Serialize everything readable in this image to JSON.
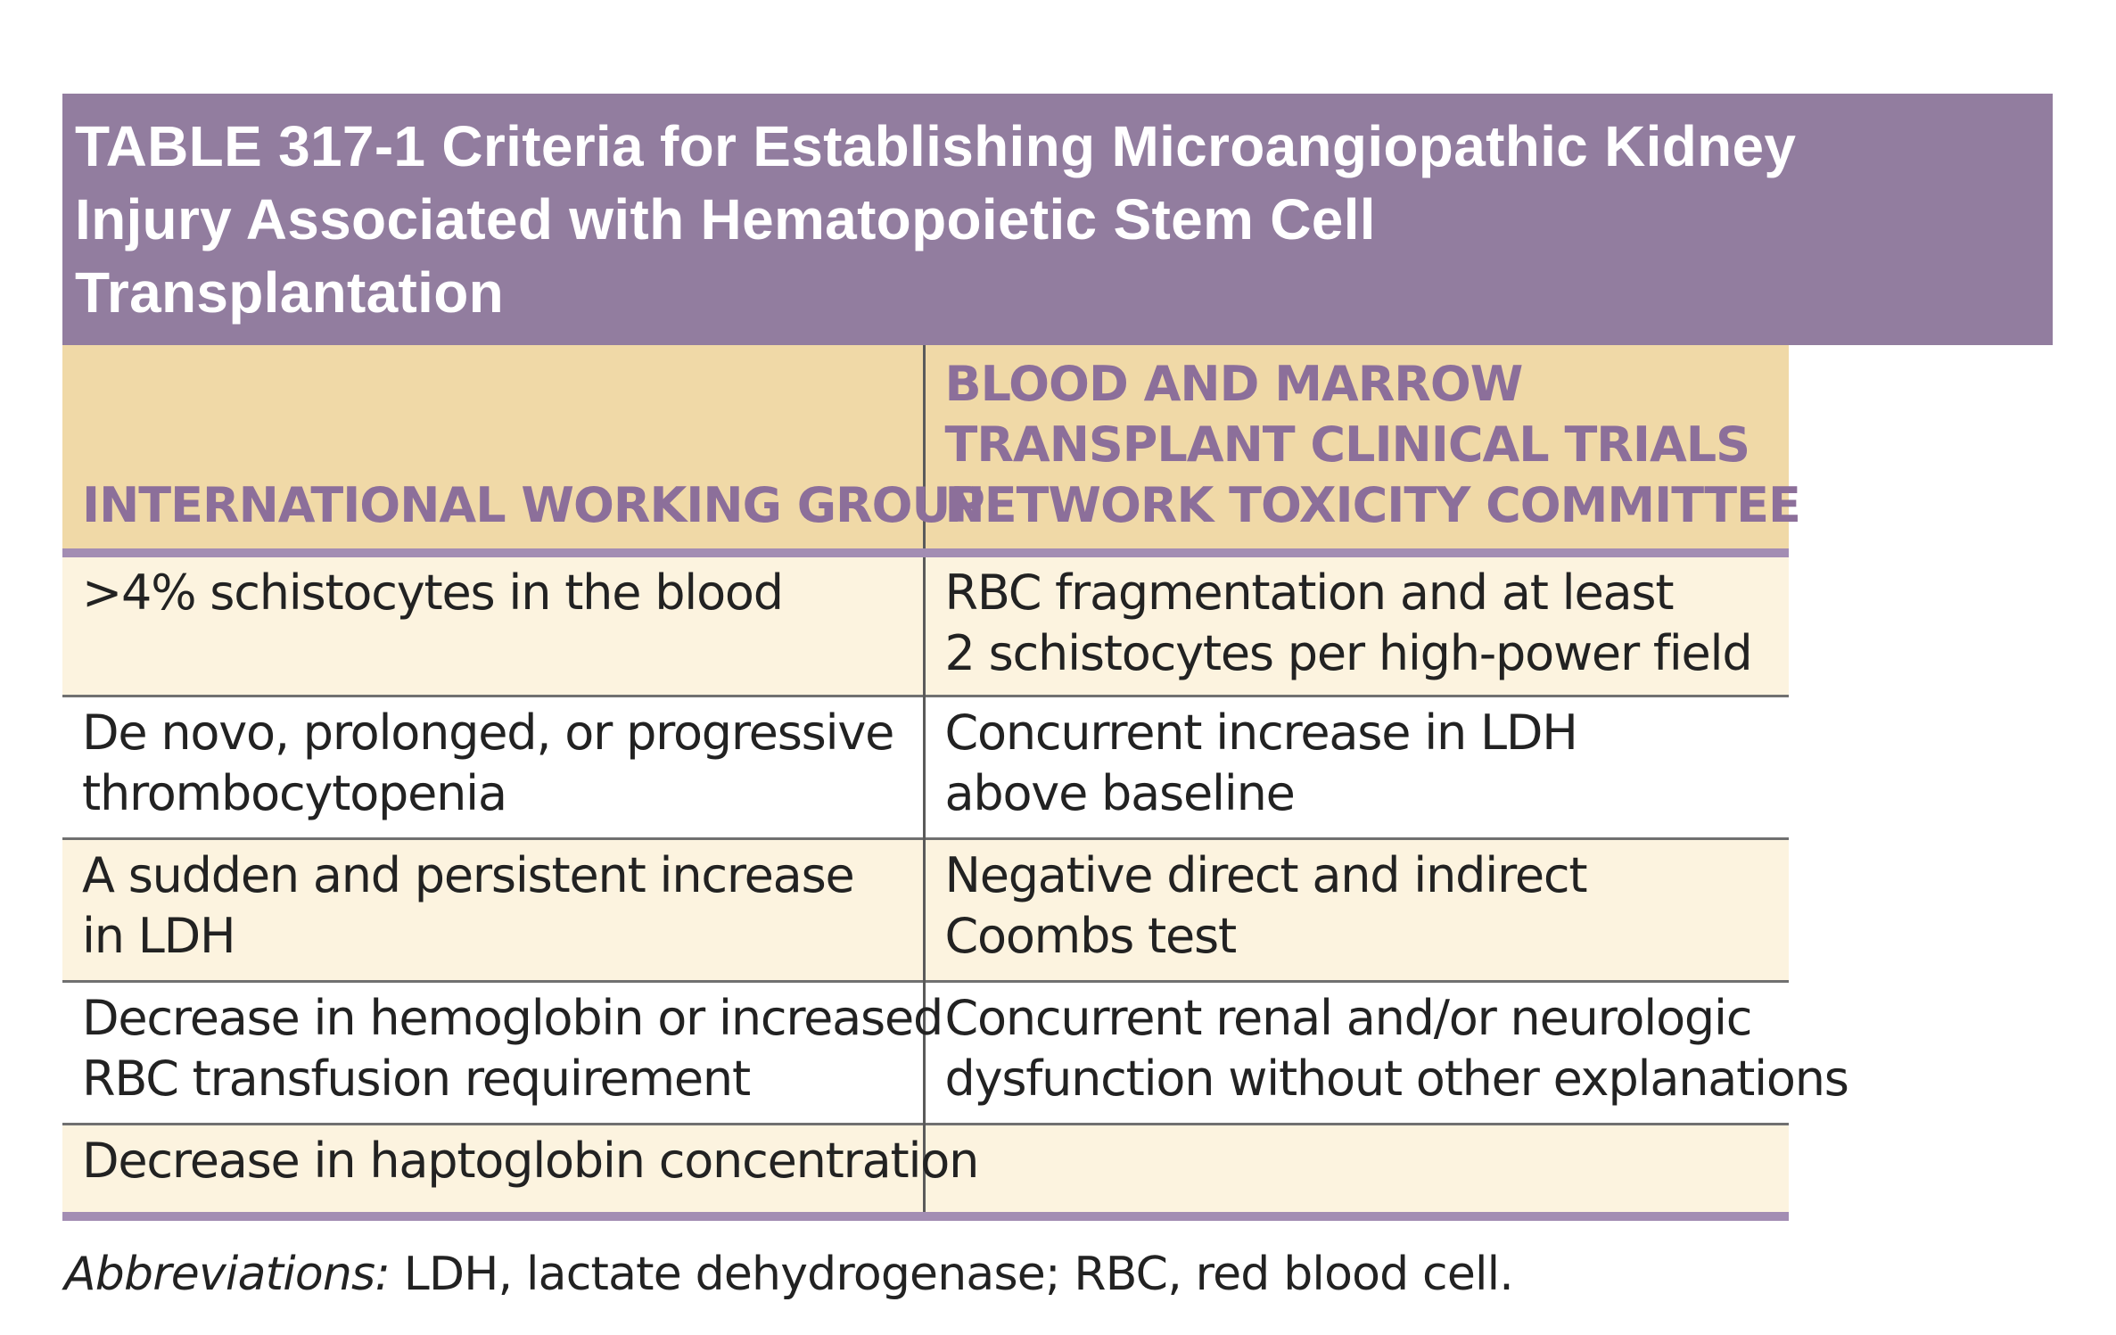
{
  "title": {
    "lines": [
      "TABLE 317-1 Criteria for Establishing Microangiopathic Kidney",
      "Injury Associated with Hematopoietic Stem Cell",
      "Transplantation"
    ]
  },
  "table": {
    "headers": [
      {
        "lines": [
          "INTERNATIONAL WORKING GROUP"
        ]
      },
      {
        "lines": [
          "BLOOD AND MARROW",
          "TRANSPLANT CLINICAL TRIALS",
          "NETWORK TOXICITY COMMITTEE"
        ]
      }
    ],
    "rows": [
      {
        "col1": [
          "&gt;4% schistocytes in the blood"
        ],
        "col2": [
          "RBC fragmentation and at least",
          "2 schistocytes per high-power field"
        ]
      },
      {
        "col1": [
          "De novo, prolonged, or progressive",
          "thrombocytopenia"
        ],
        "col2": [
          "Concurrent increase in LDH",
          "above baseline"
        ]
      },
      {
        "col1": [
          "A sudden and persistent increase",
          "in LDH"
        ],
        "col2": [
          "Negative direct and indirect",
          "Coombs test"
        ]
      },
      {
        "col1": [
          "Decrease in hemoglobin or increased",
          "RBC transfusion requirement"
        ],
        "col2": [
          "Concurrent renal and/or neurologic",
          "dysfunction without other explanations"
        ]
      },
      {
        "col1": [
          "Decrease in haptoglobin concentration"
        ],
        "col2": []
      }
    ]
  },
  "footnote": {
    "label": "Abbreviations:",
    "text": " LDH, lactate dehydrogenase; RBC, red blood cell."
  },
  "colors": {
    "title_bg": "#927d9f",
    "header_bg": "#f0d9a7",
    "header_text": "#8c6f9a",
    "rule_accent": "#a38db3",
    "row_shade": "#fcf3df"
  }
}
